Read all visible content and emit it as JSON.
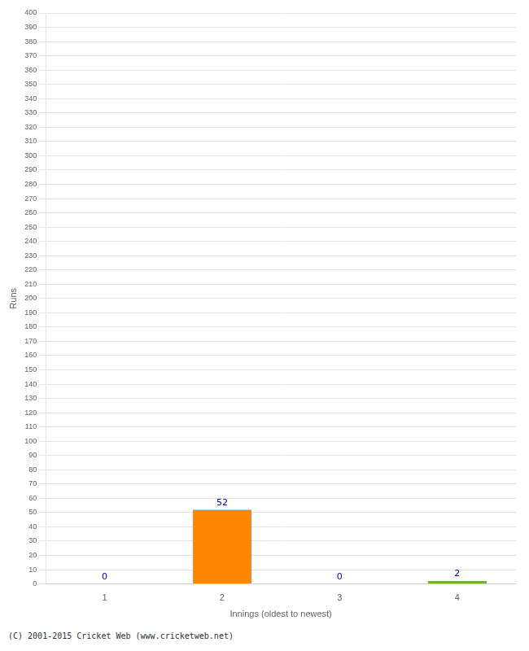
{
  "chart_data": {
    "type": "bar",
    "categories": [
      "1",
      "2",
      "3",
      "4"
    ],
    "values": [
      0,
      52,
      0,
      2
    ],
    "colors": [
      "#ff8800",
      "#ff8800",
      "#ff8800",
      "#66bb00"
    ],
    "x_label": "Innings (oldest to newest)",
    "y_label": "Runs",
    "ylim": [
      0,
      400
    ],
    "yticks": [
      0,
      10,
      20,
      30,
      40,
      50,
      60,
      70,
      80,
      90,
      100,
      110,
      120,
      130,
      140,
      150,
      160,
      170,
      180,
      190,
      200,
      210,
      220,
      230,
      240,
      250,
      260,
      270,
      280,
      290,
      300,
      310,
      320,
      330,
      340,
      350,
      360,
      370,
      380,
      390,
      400
    ],
    "grid": "y",
    "data_labels": true,
    "annotations": [
      "(C) 2001-2015 Cricket Web (www.cricketweb.net)"
    ]
  }
}
